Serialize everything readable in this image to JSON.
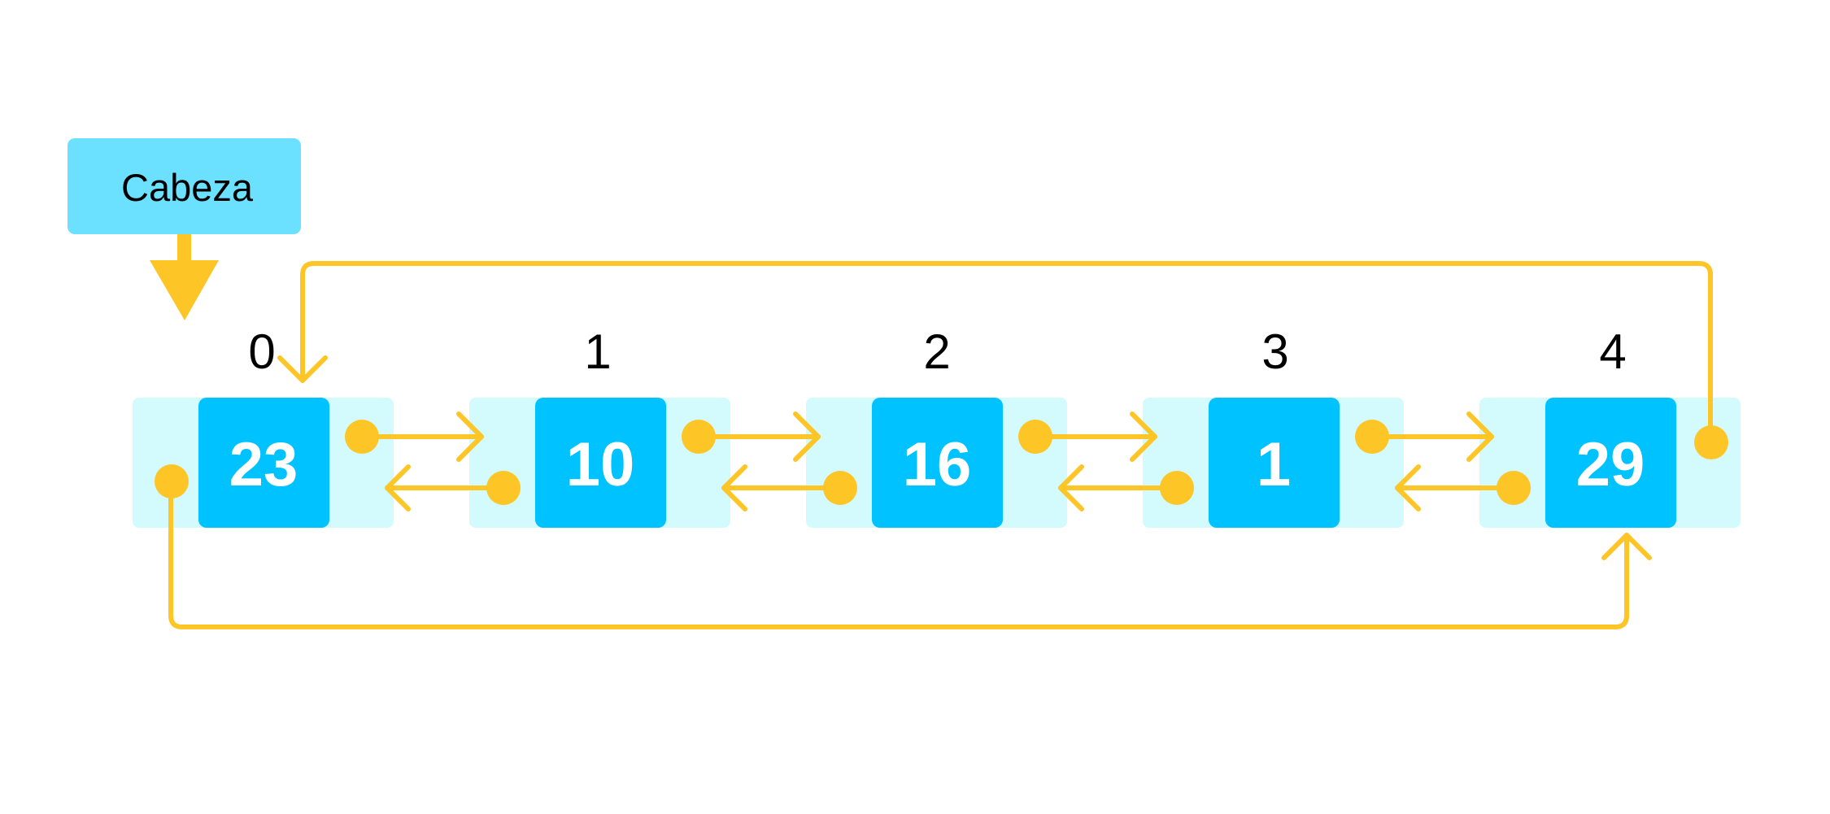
{
  "head": {
    "label": "Cabeza"
  },
  "nodes": [
    {
      "index": "0",
      "value": "23"
    },
    {
      "index": "1",
      "value": "10"
    },
    {
      "index": "2",
      "value": "16"
    },
    {
      "index": "3",
      "value": "1"
    },
    {
      "index": "4",
      "value": "29"
    }
  ],
  "colors": {
    "background": "#ffffff",
    "head_box": "#6BE0FF",
    "node_outer": "#D3FAFC",
    "node_value": "#00C2FF",
    "pointer": "#FDC526",
    "index_text": "#000000",
    "value_text": "#ffffff"
  },
  "icons": {
    "head_arrow": "down-arrow-icon",
    "pointer_dot": "pointer-dot-icon"
  }
}
